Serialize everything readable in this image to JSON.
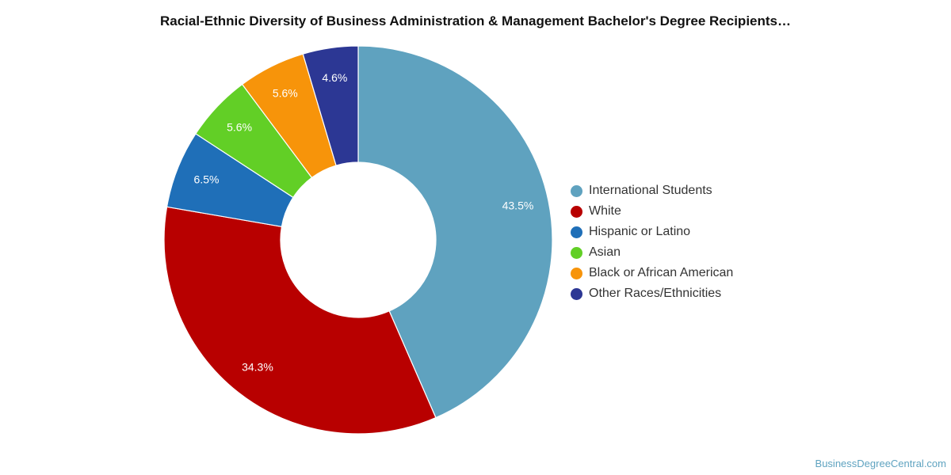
{
  "chart_data": {
    "type": "pie",
    "title": "Racial-Ethnic Diversity of Business Administration & Management Bachelor's Degree Recipients…",
    "categories": [
      "International Students",
      "White",
      "Hispanic or Latino",
      "Asian",
      "Black or African American",
      "Other Races/Ethnicities"
    ],
    "values": [
      43.5,
      34.3,
      6.5,
      5.6,
      5.6,
      4.6
    ],
    "value_labels": [
      "43.5%",
      "34.3%",
      "6.5%",
      "5.6%",
      "5.6%",
      "4.6%"
    ],
    "colors": [
      "#5fa2bf",
      "#b80000",
      "#1f6fb8",
      "#62cf26",
      "#f7940a",
      "#2c3794"
    ],
    "donut": true,
    "legend_position": "right"
  },
  "credit": "BusinessDegreeCentral.com"
}
